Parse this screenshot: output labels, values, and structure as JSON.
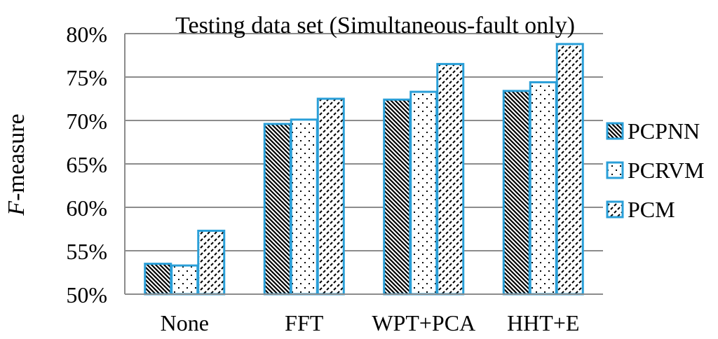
{
  "chart_data": {
    "type": "bar",
    "title": "Testing  data  set  (Simultaneous-fault  only)",
    "ylabel_italic": "F",
    "ylabel_rest": "-measure",
    "xlabel": "",
    "categories": [
      "None",
      "FFT",
      "WPT+PCA",
      "HHT+E"
    ],
    "series": [
      {
        "name": "PCPNN",
        "values": [
          53.5,
          69.6,
          72.4,
          73.4
        ],
        "pattern": "diagonal-hatch"
      },
      {
        "name": "PCRVM",
        "values": [
          53.3,
          70.1,
          73.3,
          74.4
        ],
        "pattern": "sparse-dots"
      },
      {
        "name": "PCM",
        "values": [
          57.3,
          72.5,
          76.5,
          78.8
        ],
        "pattern": "dashed-diagonal"
      }
    ],
    "ylim": [
      50,
      80
    ],
    "yticks": [
      50,
      55,
      60,
      65,
      70,
      75,
      80
    ],
    "ytick_labels": [
      "50%",
      "55%",
      "60%",
      "65%",
      "70%",
      "75%",
      "80%"
    ],
    "grid": true,
    "legend_position": "right",
    "colors": {
      "bar_outline": "#2a9fd8",
      "grid": "#8c8c8c",
      "pattern": "#000000"
    }
  }
}
